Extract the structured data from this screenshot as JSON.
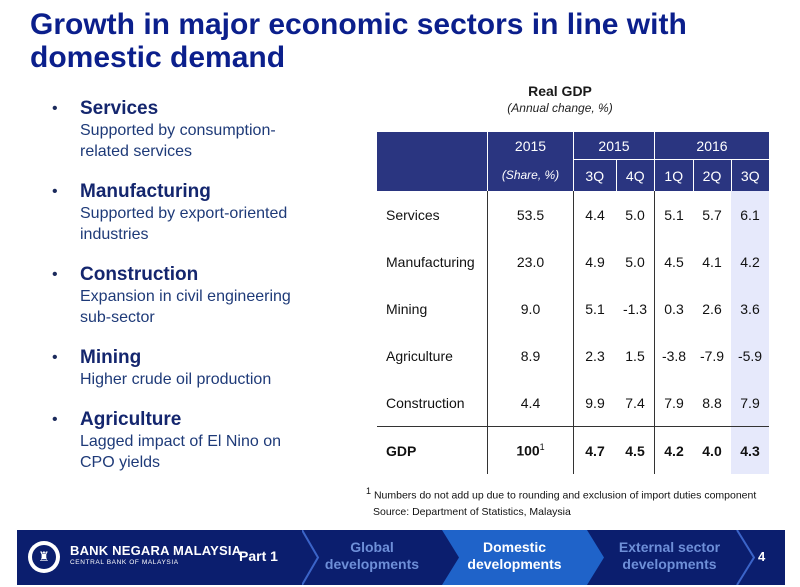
{
  "title_lines": [
    "Growth in major economic sectors in line with",
    "domestic demand"
  ],
  "bullets": [
    {
      "heading": "Services",
      "text": "Supported by consumption-related services"
    },
    {
      "heading": "Manufacturing",
      "text": "Supported by export-oriented industries"
    },
    {
      "heading": "Construction",
      "text": "Expansion in civil engineering sub-sector"
    },
    {
      "heading": "Mining",
      "text": "Higher crude oil production"
    },
    {
      "heading": "Agriculture",
      "text": "Lagged impact of El Nino on CPO yields"
    }
  ],
  "table": {
    "title": "Real GDP",
    "subtitle": "(Annual change, %)",
    "header_row1": [
      "2015",
      "2015",
      "2016"
    ],
    "header_row2": [
      "(Share, %)",
      "3Q",
      "4Q",
      "1Q",
      "2Q",
      "3Q"
    ],
    "rows": [
      {
        "label": "Services",
        "share": "53.5",
        "values": [
          "4.4",
          "5.0",
          "5.1",
          "5.7",
          "6.1"
        ]
      },
      {
        "label": "Manufacturing",
        "share": "23.0",
        "values": [
          "4.9",
          "5.0",
          "4.5",
          "4.1",
          "4.2"
        ]
      },
      {
        "label": "Mining",
        "share": "9.0",
        "values": [
          "5.1",
          "-1.3",
          "0.3",
          "2.6",
          "3.6"
        ]
      },
      {
        "label": "Agriculture",
        "share": "8.9",
        "values": [
          "2.3",
          "1.5",
          "-3.8",
          "-7.9",
          "-5.9"
        ]
      },
      {
        "label": "Construction",
        "share": "4.4",
        "values": [
          "9.9",
          "7.4",
          "7.9",
          "8.8",
          "7.9"
        ]
      }
    ],
    "total": {
      "label": "GDP",
      "share": "100",
      "share_note": "1",
      "values": [
        "4.7",
        "4.5",
        "4.2",
        "4.0",
        "4.3"
      ]
    },
    "footnote_marker": "1",
    "footnote": "Numbers do not add up due to rounding and exclusion of import duties component",
    "source": "Source: Department of Statistics, Malaysia"
  },
  "footer": {
    "bank_name": "BANK NEGARA MALAYSIA",
    "bank_subname": "CENTRAL BANK OF MALAYSIA",
    "part": "Part 1",
    "nav": [
      {
        "line1": "Global",
        "line2": "developments",
        "active": false
      },
      {
        "line1": "Domestic",
        "line2": "developments",
        "active": true
      },
      {
        "line1": "External sector",
        "line2": "developments",
        "active": false
      }
    ],
    "page_number": "4",
    "colors": {
      "background": "#0b1e6e",
      "active_chevron": "#1f63c9",
      "inactive_text": "#6e8fd8"
    }
  },
  "colors": {
    "title": "#0b1f8c",
    "table_header": "#2a3580",
    "highlight_column": "#e6e9fb"
  }
}
